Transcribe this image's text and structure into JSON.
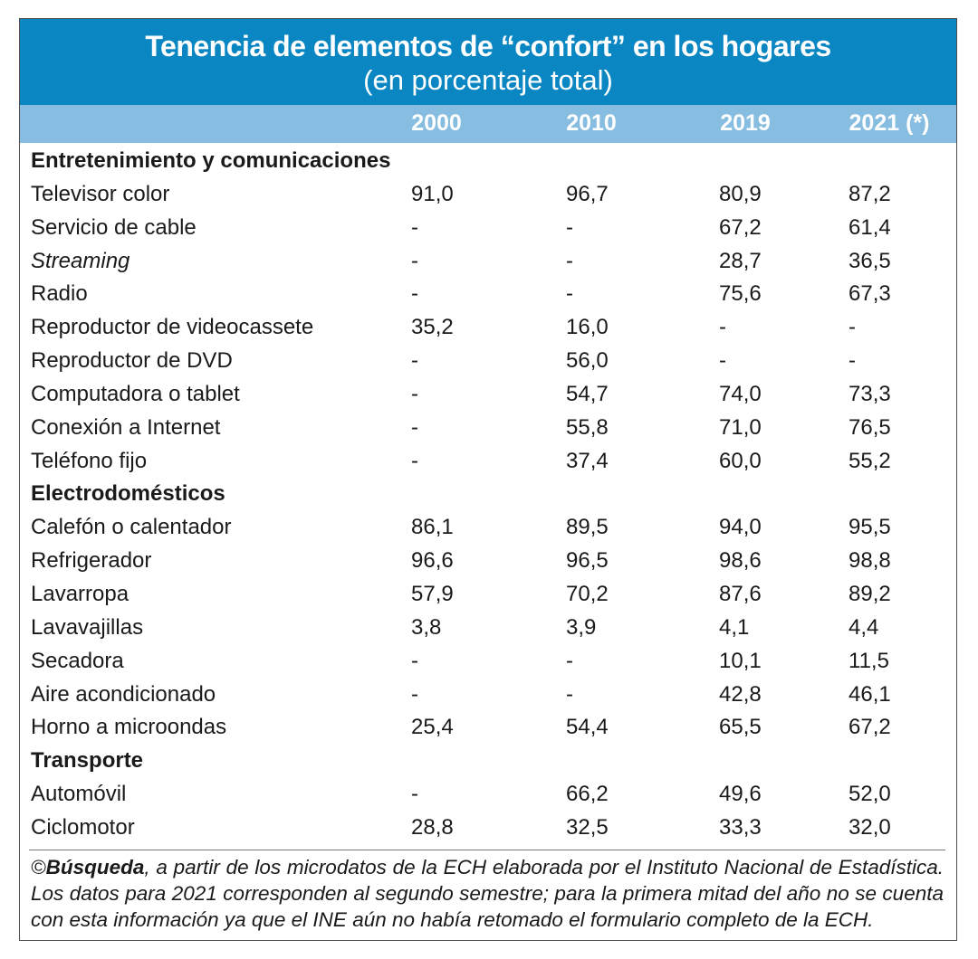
{
  "title": "Tenencia de elementos de “confort” en los hogares",
  "subtitle": "(en porcentaje total)",
  "years": [
    "2000",
    "2010",
    "2019",
    "2021 (*)"
  ],
  "rows": [
    {
      "type": "section",
      "label": "Entretenimiento y comunicaciones"
    },
    {
      "type": "item",
      "label": "Televisor color",
      "values": [
        "91,0",
        "96,7",
        "80,9",
        "87,2"
      ]
    },
    {
      "type": "item",
      "label": "Servicio de cable",
      "values": [
        "-",
        "-",
        "67,2",
        "61,4"
      ]
    },
    {
      "type": "item",
      "label": "Streaming",
      "italic": true,
      "values": [
        "-",
        "-",
        "28,7",
        "36,5"
      ]
    },
    {
      "type": "item",
      "label": "Radio",
      "values": [
        "-",
        "-",
        "75,6",
        "67,3"
      ]
    },
    {
      "type": "item",
      "label": "Reproductor de videocassete",
      "values": [
        "35,2",
        "16,0",
        "-",
        "-"
      ]
    },
    {
      "type": "item",
      "label": "Reproductor de DVD",
      "values": [
        "-",
        "56,0",
        "-",
        "-"
      ]
    },
    {
      "type": "item",
      "label": "Computadora o tablet",
      "values": [
        "-",
        "54,7",
        "74,0",
        "73,3"
      ]
    },
    {
      "type": "item",
      "label": "Conexión a Internet",
      "values": [
        "-",
        "55,8",
        "71,0",
        "76,5"
      ]
    },
    {
      "type": "item",
      "label": "Teléfono fijo",
      "values": [
        "-",
        "37,4",
        "60,0",
        "55,2"
      ]
    },
    {
      "type": "section",
      "label": "Electrodomésticos"
    },
    {
      "type": "item",
      "label": "Calefón o calentador",
      "values": [
        "86,1",
        "89,5",
        "94,0",
        "95,5"
      ]
    },
    {
      "type": "item",
      "label": "Refrigerador",
      "values": [
        "96,6",
        "96,5",
        "98,6",
        "98,8"
      ]
    },
    {
      "type": "item",
      "label": "Lavarropa",
      "values": [
        "57,9",
        "70,2",
        "87,6",
        "89,2"
      ]
    },
    {
      "type": "item",
      "label": "Lavavajillas",
      "values": [
        "3,8",
        "3,9",
        "4,1",
        "4,4"
      ]
    },
    {
      "type": "item",
      "label": "Secadora",
      "values": [
        "-",
        "-",
        "10,1",
        "11,5"
      ]
    },
    {
      "type": "item",
      "label": "Aire acondicionado",
      "values": [
        "-",
        "-",
        "42,8",
        "46,1"
      ]
    },
    {
      "type": "item",
      "label": "Horno a microondas",
      "values": [
        "25,4",
        "54,4",
        "65,5",
        "67,2"
      ]
    },
    {
      "type": "section",
      "label": "Transporte"
    },
    {
      "type": "item",
      "label": "Automóvil",
      "values": [
        "-",
        "66,2",
        "49,6",
        "52,0"
      ]
    },
    {
      "type": "item",
      "label": "Ciclomotor",
      "values": [
        "28,8",
        "32,5",
        "33,3",
        "32,0"
      ]
    }
  ],
  "note": {
    "prefix": "©",
    "source": "Búsqueda",
    "text": ", a partir de los microdatos de la ECH elaborada por el Instituto Nacional de Estadística. Los datos para 2021 corresponden al segundo semestre; para la primera mitad del año no se cuenta con esta información ya que el INE aún no había retomado el formulario completo de la ECH."
  },
  "colors": {
    "title_band": "#0a86c3",
    "header_band": "#86bde0",
    "text": "#1a1a1a"
  }
}
